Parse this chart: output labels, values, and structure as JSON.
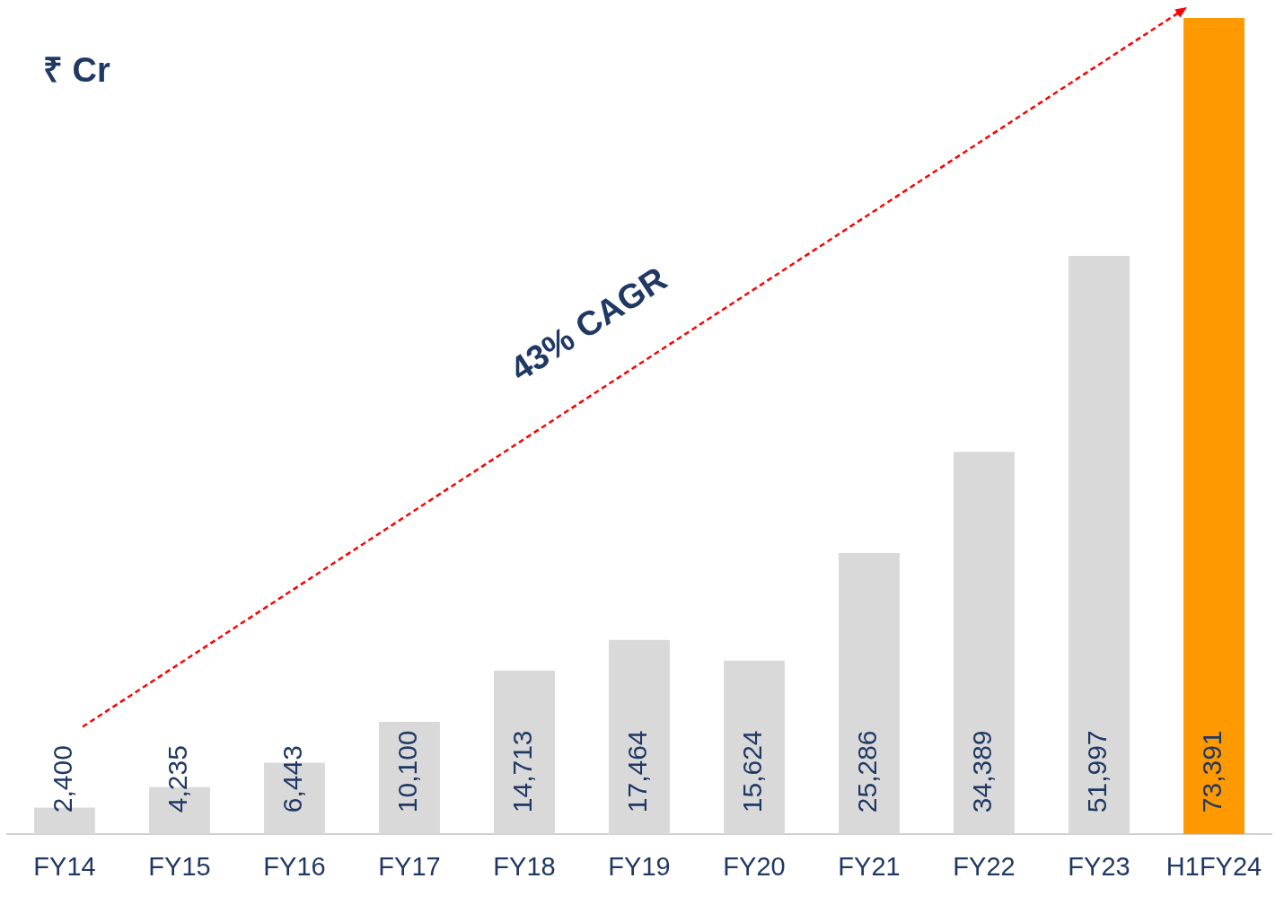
{
  "chart_data": {
    "type": "bar",
    "ylabel": "₹ Cr",
    "categories": [
      "FY14",
      "FY15",
      "FY16",
      "FY17",
      "FY18",
      "FY19",
      "FY20",
      "FY21",
      "FY22",
      "FY23",
      "H1FY24"
    ],
    "values": [
      2400,
      4235,
      6443,
      10100,
      14713,
      17464,
      15624,
      25286,
      34389,
      51997,
      73391
    ],
    "colors": [
      "#d9d9d9",
      "#d9d9d9",
      "#d9d9d9",
      "#d9d9d9",
      "#d9d9d9",
      "#d9d9d9",
      "#d9d9d9",
      "#d9d9d9",
      "#d9d9d9",
      "#d9d9d9",
      "#ff9900"
    ],
    "value_labels": [
      "2,400",
      "4,235",
      "6,443",
      "10,100",
      "14,713",
      "17,464",
      "15,624",
      "25,286",
      "34,389",
      "51,997",
      "73,391"
    ],
    "grid": false,
    "legend": false,
    "annotations": [
      "43% CAGR"
    ]
  }
}
